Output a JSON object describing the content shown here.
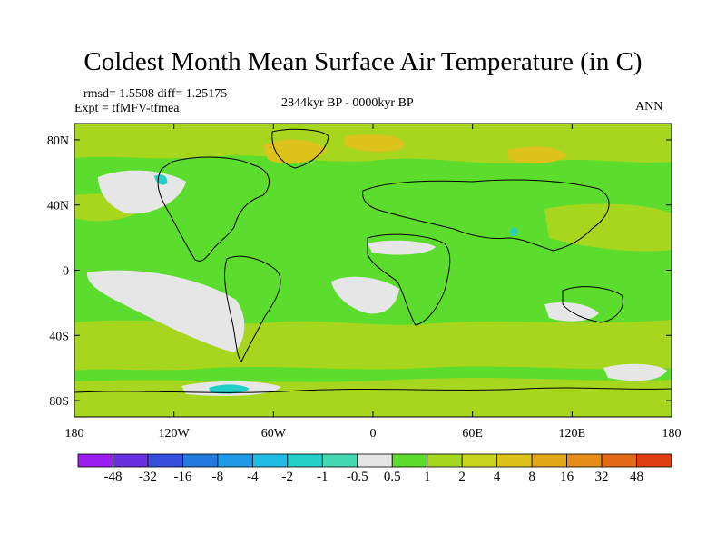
{
  "title": "Coldest Month Mean Surface Air Temperature (in C)",
  "stats": {
    "line1": "rmsd= 1.5508 diff= 1.25175",
    "line2": "Expt = tfMFV-tfmea"
  },
  "period": "2844kyr BP - 0000kyr BP",
  "season": "ANN",
  "axes": {
    "y_ticks": [
      {
        "label": "80N",
        "lat": 80
      },
      {
        "label": "40N",
        "lat": 40
      },
      {
        "label": "0",
        "lat": 0
      },
      {
        "label": "40S",
        "lat": -40
      },
      {
        "label": "80S",
        "lat": -80
      }
    ],
    "x_ticks": [
      {
        "label": "180",
        "lon": -180
      },
      {
        "label": "120W",
        "lon": -120
      },
      {
        "label": "60W",
        "lon": -60
      },
      {
        "label": "0",
        "lon": 0
      },
      {
        "label": "60E",
        "lon": 60
      },
      {
        "label": "120E",
        "lon": 120
      },
      {
        "label": "180",
        "lon": 180
      }
    ],
    "lon_range": [
      -180,
      180
    ],
    "lat_range": [
      -90,
      90
    ]
  },
  "colorbar": {
    "colors": [
      "#9b1ff0",
      "#6a2fe0",
      "#3650dc",
      "#2479dc",
      "#1e9ae6",
      "#20bce6",
      "#22d0c8",
      "#44d8b0",
      "#e6e6e6",
      "#5cdc2c",
      "#a6d61e",
      "#c8d41c",
      "#dcc21a",
      "#e2a818",
      "#e68c18",
      "#e26a16",
      "#e03e10"
    ],
    "labels": [
      "-48",
      "-32",
      "-16",
      "-8",
      "-4",
      "-2",
      "-1",
      "-0.5",
      "0.5",
      "1",
      "2",
      "4",
      "8",
      "16",
      "32",
      "48"
    ]
  }
}
